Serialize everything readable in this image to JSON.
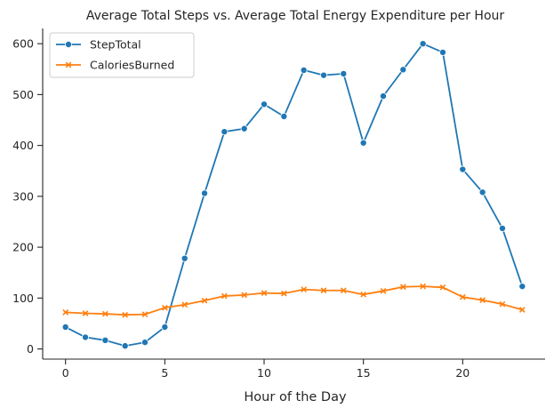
{
  "chart_data": {
    "type": "line",
    "title": "Average Total Steps vs. Average Total Energy Expenditure per Hour",
    "xlabel": "Hour of the Day",
    "ylabel": "",
    "xlim": [
      -1.15,
      24.15
    ],
    "ylim": [
      -20,
      630
    ],
    "xticks": [
      0,
      5,
      10,
      15,
      20
    ],
    "yticks": [
      0,
      100,
      200,
      300,
      400,
      500,
      600
    ],
    "grid": false,
    "legend_position": "top-left",
    "x": [
      0,
      1,
      2,
      3,
      4,
      5,
      6,
      7,
      8,
      9,
      10,
      11,
      12,
      13,
      14,
      15,
      16,
      17,
      18,
      19,
      20,
      21,
      22,
      23
    ],
    "series": [
      {
        "name": "StepTotal",
        "color": "#1f77b4",
        "marker": "circle",
        "values": [
          43,
          23,
          17,
          6,
          13,
          43,
          178,
          306,
          427,
          433,
          481,
          457,
          548,
          538,
          541,
          405,
          497,
          549,
          600,
          583,
          353,
          308,
          237,
          123
        ]
      },
      {
        "name": "CaloriesBurned",
        "color": "#ff7f0e",
        "marker": "x",
        "values": [
          72,
          70,
          69,
          67,
          68,
          81,
          87,
          95,
          104,
          106,
          110,
          109,
          117,
          115,
          115,
          107,
          114,
          122,
          123,
          121,
          102,
          96,
          88,
          77
        ]
      }
    ]
  }
}
